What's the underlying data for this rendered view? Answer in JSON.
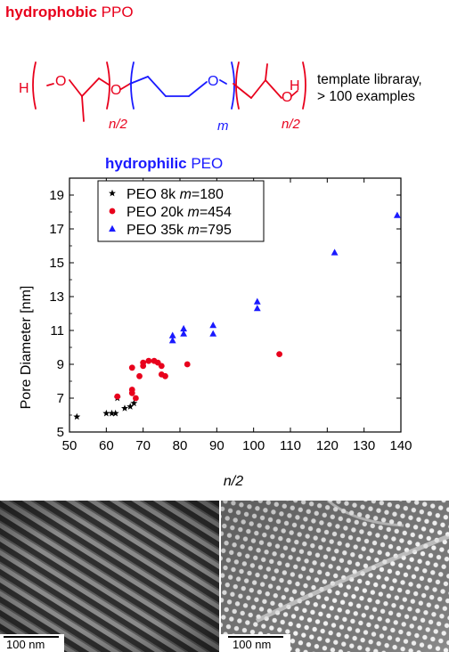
{
  "header": {
    "ppo_bold": "hydrophobic",
    "ppo_rest": " PPO",
    "peo_bold": "hydrophilic",
    "peo_rest": " PEO",
    "note_line1": "template libraray,",
    "note_line2": "> 100 examples"
  },
  "structure": {
    "h_left": "H",
    "o1": "O",
    "o2": "O",
    "o3": "O",
    "h_right": "H",
    "sub_n2_left": "n/2",
    "sub_m": "m",
    "sub_n2_right": "n/2",
    "colors": {
      "ppo": "#e8001c",
      "peo": "#1a1aff"
    }
  },
  "chart_data": {
    "type": "scatter",
    "xlabel": "n/2",
    "ylabel": "Pore Diameter [nm]",
    "xlim": [
      50,
      140
    ],
    "ylim": [
      5,
      20
    ],
    "xticks": [
      50,
      60,
      70,
      80,
      90,
      100,
      110,
      120,
      130,
      140
    ],
    "yticks": [
      5,
      7,
      9,
      11,
      13,
      15,
      17,
      19
    ],
    "legend_position": "top-left",
    "series": [
      {
        "name": "PEO 8k m=180",
        "legend_parts": [
          "PEO",
          "8k",
          "m",
          "=180"
        ],
        "marker": "star",
        "color": "#000000",
        "points": [
          [
            52,
            5.9
          ],
          [
            60,
            6.1
          ],
          [
            61.5,
            6.1
          ],
          [
            62.5,
            6.1
          ],
          [
            63,
            7.0
          ],
          [
            65,
            6.4
          ],
          [
            66.5,
            6.5
          ],
          [
            67.5,
            6.7
          ]
        ]
      },
      {
        "name": "PEO 20k m=454",
        "legend_parts": [
          "PEO",
          "20k",
          "m",
          "=454"
        ],
        "marker": "circle",
        "color": "#e8001c",
        "points": [
          [
            63,
            7.1
          ],
          [
            67,
            7.3
          ],
          [
            67,
            7.5
          ],
          [
            67,
            8.8
          ],
          [
            68,
            7.0
          ],
          [
            69,
            8.3
          ],
          [
            70,
            8.9
          ],
          [
            70,
            9.1
          ],
          [
            71.5,
            9.2
          ],
          [
            73,
            9.2
          ],
          [
            74,
            9.1
          ],
          [
            75,
            8.9
          ],
          [
            75,
            8.4
          ],
          [
            76,
            8.3
          ],
          [
            82,
            9.0
          ],
          [
            107,
            9.6
          ]
        ]
      },
      {
        "name": "PEO 35k m=795",
        "legend_parts": [
          "PEO",
          "35k",
          "m",
          "=795"
        ],
        "marker": "triangle",
        "color": "#1a1aff",
        "points": [
          [
            78,
            10.4
          ],
          [
            78,
            10.7
          ],
          [
            81,
            10.8
          ],
          [
            81,
            11.1
          ],
          [
            89,
            10.8
          ],
          [
            89,
            11.3
          ],
          [
            101,
            12.3
          ],
          [
            101,
            12.7
          ],
          [
            122,
            15.6
          ],
          [
            139,
            17.8
          ]
        ]
      }
    ]
  },
  "tem": {
    "left_scale": "100 nm",
    "right_scale": "100 nm"
  }
}
